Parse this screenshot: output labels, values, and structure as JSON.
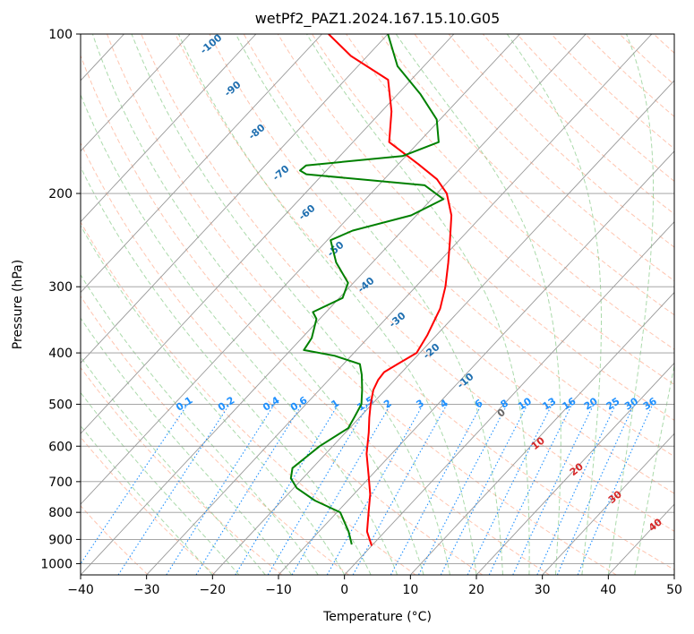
{
  "chart_data": {
    "type": "line",
    "title": "wetPf2_PAZ1.2024.167.15.10.G05",
    "xlabel": "Temperature (°C)",
    "ylabel": "Pressure (hPa)",
    "xlim": [
      -40,
      50
    ],
    "ylim": [
      1050,
      100
    ],
    "y_scale": "log",
    "grid": true,
    "x_ticks": [
      -40,
      -30,
      -20,
      -10,
      0,
      10,
      20,
      30,
      40,
      50
    ],
    "x_tick_labels": [
      "−40",
      "−30",
      "−20",
      "−10",
      "0",
      "10",
      "20",
      "30",
      "40",
      "50"
    ],
    "y_ticks": [
      100,
      200,
      300,
      400,
      500,
      600,
      700,
      800,
      900,
      1000
    ],
    "y_tick_labels": [
      "100",
      "200",
      "300",
      "400",
      "500",
      "600",
      "700",
      "800",
      "900",
      "1000"
    ],
    "skew_deg_per_decade": 75,
    "colors": {
      "temperature": "#ff0000",
      "dewpoint": "#008000",
      "isotherm": "#999999",
      "dry_adiabat": "#ff7f50",
      "moist_adiabat": "#66bb66",
      "mixing_ratio": "#1e90ff",
      "theta_e_label": "#1f6fb0",
      "temp_label": "#d62728"
    },
    "series": [
      {
        "name": "Temperature",
        "points": [
          [
            0.0,
            925
          ],
          [
            -2.7,
            870
          ],
          [
            -5.2,
            800
          ],
          [
            -7.5,
            740
          ],
          [
            -10.5,
            680
          ],
          [
            -13.8,
            620
          ],
          [
            -16.5,
            565
          ],
          [
            -18.5,
            530
          ],
          [
            -20.2,
            500
          ],
          [
            -21.8,
            470
          ],
          [
            -22.5,
            450
          ],
          [
            -22.7,
            435
          ],
          [
            -21.8,
            420
          ],
          [
            -20.5,
            400
          ],
          [
            -21.4,
            370
          ],
          [
            -23.2,
            330
          ],
          [
            -25.5,
            300
          ],
          [
            -28.5,
            270
          ],
          [
            -31.4,
            245
          ],
          [
            -34.7,
            220
          ],
          [
            -38.5,
            200
          ],
          [
            -42.0,
            188
          ],
          [
            -47.0,
            176
          ],
          [
            -54.5,
            160
          ],
          [
            -58.5,
            140
          ],
          [
            -63.5,
            122
          ],
          [
            -72.5,
            110
          ],
          [
            -79.0,
            100
          ]
        ]
      },
      {
        "name": "Dewpoint",
        "points": [
          [
            -3.2,
            920
          ],
          [
            -5.5,
            870
          ],
          [
            -9.5,
            800
          ],
          [
            -15.0,
            760
          ],
          [
            -19.5,
            720
          ],
          [
            -21.8,
            690
          ],
          [
            -23.0,
            660
          ],
          [
            -22.0,
            600
          ],
          [
            -20.2,
            555
          ],
          [
            -20.8,
            530
          ],
          [
            -21.6,
            500
          ],
          [
            -23.5,
            470
          ],
          [
            -25.7,
            440
          ],
          [
            -27.5,
            420
          ],
          [
            -32.5,
            405
          ],
          [
            -38.0,
            395
          ],
          [
            -38.5,
            375
          ],
          [
            -40.5,
            345
          ],
          [
            -42.0,
            335
          ],
          [
            -39.5,
            315
          ],
          [
            -40.8,
            295
          ],
          [
            -45.5,
            270
          ],
          [
            -49.5,
            245
          ],
          [
            -47.5,
            235
          ],
          [
            -40.8,
            220
          ],
          [
            -38.2,
            205
          ],
          [
            -43.0,
            193
          ],
          [
            -62.5,
            184
          ],
          [
            -64.0,
            181
          ],
          [
            -63.8,
            177
          ],
          [
            -50.5,
            170
          ],
          [
            -47.0,
            160
          ],
          [
            -50.5,
            145
          ],
          [
            -56.5,
            130
          ],
          [
            -64.0,
            115
          ],
          [
            -70.0,
            100
          ]
        ]
      }
    ],
    "theta_e_labels": [
      "-100",
      "-90",
      "-80",
      "-70",
      "-60",
      "-50",
      "-40",
      "-30",
      "-20",
      "-10"
    ],
    "temp_labels": [
      "0",
      "10",
      "20",
      "30",
      "40"
    ],
    "mixing_ratio_labels": [
      "0.1",
      "0.2",
      "0.4",
      "0.6",
      "1",
      "1.5",
      "2",
      "3",
      "4",
      "6",
      "8",
      "10",
      "13",
      "16",
      "20",
      "25",
      "30",
      "36"
    ]
  }
}
